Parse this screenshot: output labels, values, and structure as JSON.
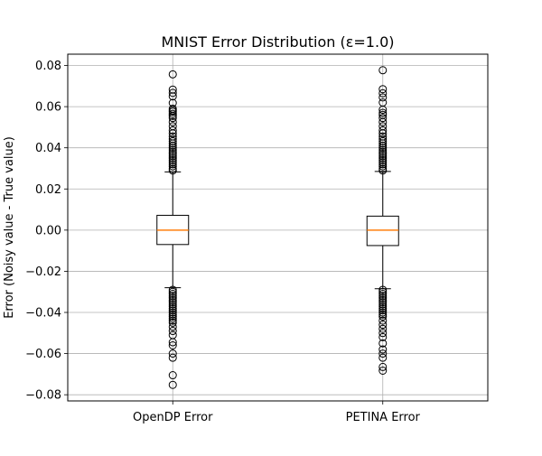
{
  "chart_data": {
    "type": "boxplot",
    "title": "MNIST Error Distribution (ε=1.0)",
    "xlabel": "",
    "ylabel": "Error (Noisy value - True value)",
    "ylim": [
      -0.083,
      0.0855
    ],
    "grid": true,
    "categories": [
      "OpenDP Error",
      "PETINA Error"
    ],
    "yticks": [
      0.08,
      0.06,
      0.04,
      0.02,
      0.0,
      -0.02,
      -0.04,
      -0.06,
      -0.08
    ],
    "ytick_labels": [
      "0.08",
      "0.06",
      "0.04",
      "0.02",
      "0.00",
      "−0.02",
      "−0.04",
      "−0.06",
      "−0.08"
    ],
    "colors": {
      "median": "#ff7f0e",
      "box": "#000000",
      "grid": "#b0b0b0"
    },
    "boxes": [
      {
        "name": "OpenDP Error",
        "q1": -0.007,
        "median": 0.0,
        "q3": 0.0072,
        "whisker_low": -0.028,
        "whisker_high": 0.0283,
        "outliers": [
          0.0757,
          0.0683,
          0.0667,
          0.065,
          0.0618,
          0.059,
          0.0582,
          0.0575,
          0.0565,
          0.0555,
          0.0545,
          0.0525,
          0.0505,
          0.0485,
          0.047,
          0.0455,
          0.0443,
          0.0432,
          0.0421,
          0.041,
          0.04,
          0.039,
          0.038,
          0.037,
          0.036,
          0.035,
          0.034,
          0.033,
          0.032,
          0.031,
          0.0298,
          0.029,
          -0.029,
          -0.03,
          -0.031,
          -0.032,
          -0.033,
          -0.034,
          -0.035,
          -0.036,
          -0.037,
          -0.038,
          -0.039,
          -0.04,
          -0.041,
          -0.042,
          -0.043,
          -0.044,
          -0.045,
          -0.047,
          -0.049,
          -0.051,
          -0.0545,
          -0.056,
          -0.06,
          -0.062,
          -0.0705,
          -0.0752
        ]
      },
      {
        "name": "PETINA Error",
        "q1": -0.0075,
        "median": 0.0,
        "q3": 0.0068,
        "whisker_low": -0.0285,
        "whisker_high": 0.0285,
        "outliers": [
          0.0777,
          0.0685,
          0.0665,
          0.0645,
          0.062,
          0.0585,
          0.057,
          0.056,
          0.0545,
          0.0525,
          0.0505,
          0.0485,
          0.047,
          0.0455,
          0.0443,
          0.0432,
          0.0421,
          0.041,
          0.04,
          0.039,
          0.038,
          0.037,
          0.036,
          0.035,
          0.034,
          0.033,
          0.032,
          0.031,
          0.0298,
          0.029,
          -0.029,
          -0.03,
          -0.031,
          -0.032,
          -0.033,
          -0.034,
          -0.035,
          -0.036,
          -0.037,
          -0.038,
          -0.039,
          -0.04,
          -0.041,
          -0.042,
          -0.044,
          -0.046,
          -0.048,
          -0.05,
          -0.052,
          -0.055,
          -0.058,
          -0.06,
          -0.062,
          -0.0665,
          -0.0683
        ]
      }
    ]
  }
}
